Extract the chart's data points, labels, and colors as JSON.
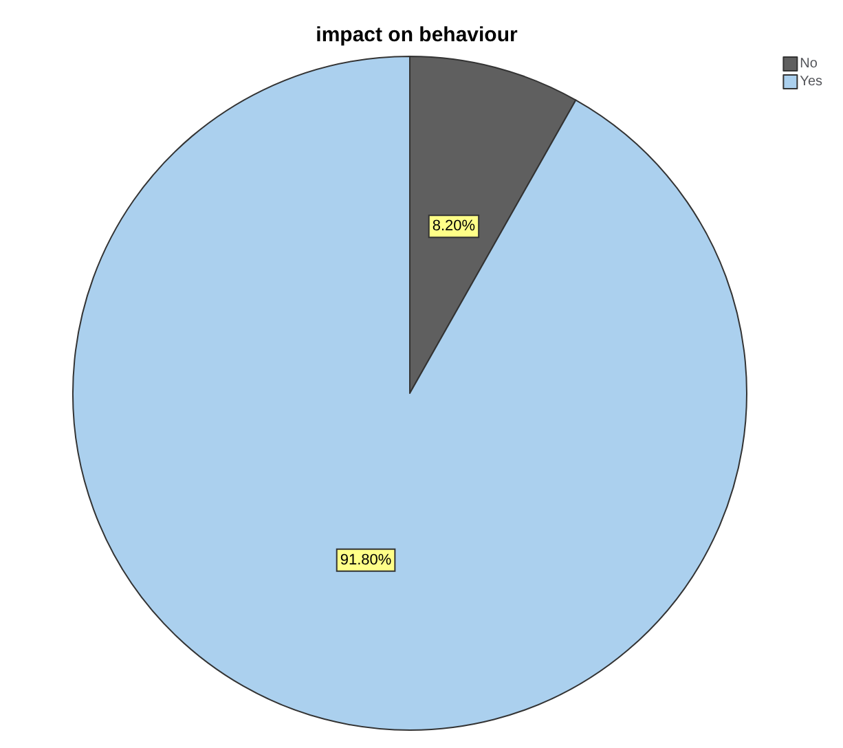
{
  "chart_data": {
    "type": "pie",
    "title": "impact on behaviour",
    "categories": [
      "No",
      "Yes"
    ],
    "values": [
      8.2,
      91.8
    ],
    "value_labels": [
      "8.20%",
      "91.80%"
    ],
    "colors": [
      "#5f5f5f",
      "#abd0ee"
    ],
    "legend": "top right"
  }
}
